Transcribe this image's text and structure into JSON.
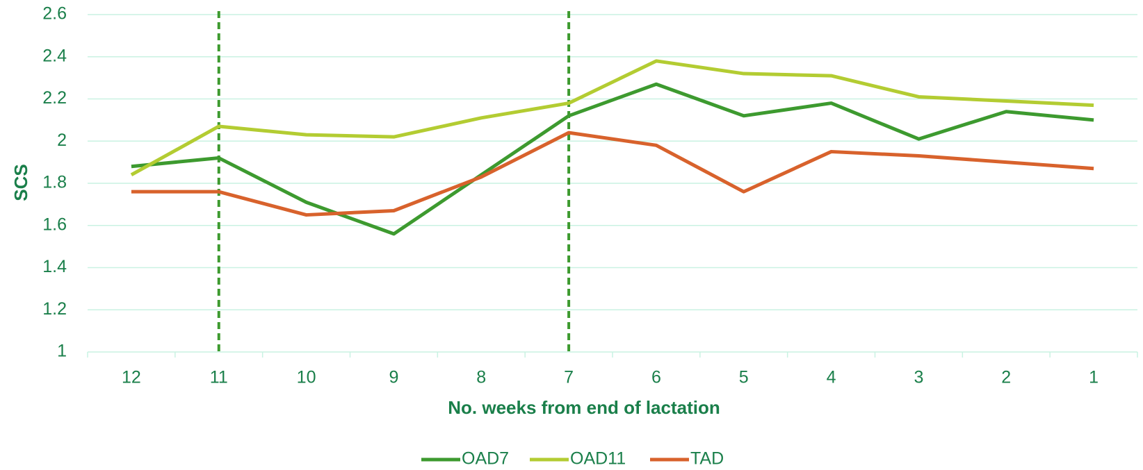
{
  "chart_data": {
    "type": "line",
    "x_label": "No. weeks from end of lactation",
    "y_label": "SCS",
    "categories": [
      "12",
      "11",
      "10",
      "9",
      "8",
      "7",
      "6",
      "5",
      "4",
      "3",
      "2",
      "1"
    ],
    "series": [
      {
        "name": "OAD7",
        "color": "#3d9a2f",
        "values": [
          1.88,
          1.92,
          1.71,
          1.56,
          1.84,
          2.12,
          2.27,
          2.12,
          2.18,
          2.01,
          2.14,
          2.1
        ]
      },
      {
        "name": "OAD11",
        "color": "#b3cc32",
        "values": [
          1.84,
          2.07,
          2.03,
          2.02,
          2.11,
          2.18,
          2.38,
          2.32,
          2.31,
          2.21,
          2.19,
          2.17
        ]
      },
      {
        "name": "TAD",
        "color": "#d8622c",
        "values": [
          1.76,
          1.76,
          1.65,
          1.67,
          1.83,
          2.04,
          1.98,
          1.76,
          1.95,
          1.93,
          1.9,
          1.87
        ]
      }
    ],
    "ylim": [
      1,
      2.6
    ],
    "yticks": [
      1,
      1.2,
      1.4,
      1.6,
      1.8,
      2,
      2.2,
      2.4,
      2.6
    ],
    "grid": true,
    "vlines": [
      "11",
      "7"
    ],
    "vline_color": "#3d9a2f",
    "legend": "bottom"
  }
}
